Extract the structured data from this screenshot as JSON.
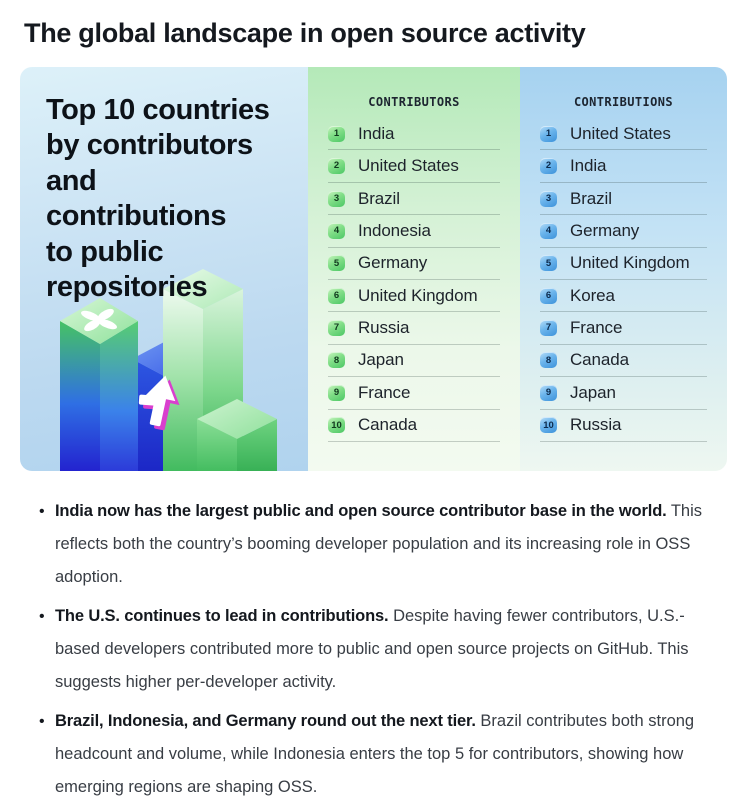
{
  "page_title": "The global landscape in open source activity",
  "infographic": {
    "panel_title_lines": [
      "Top 10 countries",
      "by contributors",
      "and contributions",
      "to public",
      "repositories"
    ],
    "contributors": {
      "header": "CONTRIBUTORS",
      "ranking": [
        "India",
        "United States",
        "Brazil",
        "Indonesia",
        "Germany",
        "United Kingdom",
        "Russia",
        "Japan",
        "France",
        "Canada"
      ]
    },
    "contributions": {
      "header": "CONTRIBUTIONS",
      "ranking": [
        "United States",
        "India",
        "Brazil",
        "Germany",
        "United Kingdom",
        "Korea",
        "France",
        "Canada",
        "Japan",
        "Russia"
      ]
    },
    "illustration_icons": [
      "clover-icon",
      "up-arrow-icon",
      "bar-column"
    ],
    "colors": {
      "badge_green": "#4cc765",
      "badge_blue": "#3d92da",
      "bar_green": "#3bbf58",
      "bar_blue": "#2a4fe0",
      "accent_magenta": "#d93fce",
      "panel_left_bg": "#c9e2f4",
      "panel_mid_bg": "#c2edc5",
      "panel_right_bg": "#b7dcf3"
    }
  },
  "insights": [
    {
      "lead": "India now has the largest public and open source contributor base in the world.",
      "body": "This reflects both the country’s booming developer population and its increasing role in OSS adoption."
    },
    {
      "lead": "The U.S. continues to lead in contributions.",
      "body": "Despite having fewer contributors, U.S.-based developers contributed more to public and open source projects on GitHub. This suggests higher per-developer activity."
    },
    {
      "lead": "Brazil, Indonesia, and Germany round out the next tier.",
      "body": "Brazil contributes both strong headcount and volume, while Indonesia enters the top 5 for contributors, showing how emerging regions are shaping OSS."
    }
  ]
}
